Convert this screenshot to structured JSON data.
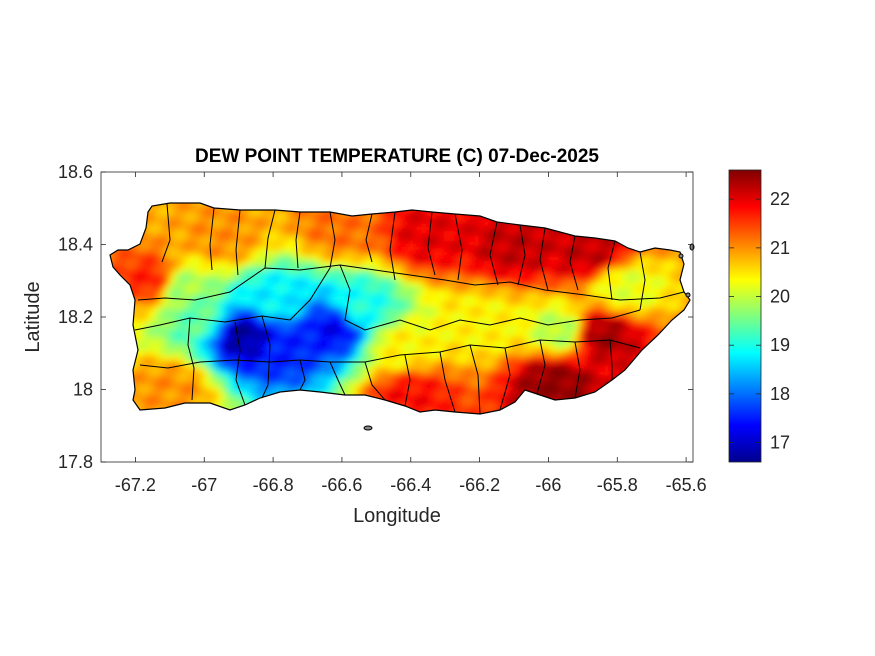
{
  "chart_data": {
    "type": "heatmap",
    "title": "DEW POINT TEMPERATURE (C) 07-Dec-2025",
    "xlabel": "Longitude",
    "ylabel": "Latitude",
    "xlim": [
      -67.3,
      -65.58
    ],
    "ylim": [
      17.8,
      18.6
    ],
    "x_ticks": [
      -67.2,
      -67,
      -66.8,
      -66.6,
      -66.4,
      -66.2,
      -66,
      -65.8,
      -65.6
    ],
    "y_ticks": [
      17.8,
      18,
      18.2,
      18.4,
      18.6
    ],
    "x_tick_labels": [
      "-67.2",
      "-67",
      "-66.8",
      "-66.6",
      "-66.4",
      "-66.2",
      "-66",
      "-65.8",
      "-65.6"
    ],
    "y_tick_labels": [
      "17.8",
      "18",
      "18.2",
      "18.4",
      "18.6"
    ],
    "colorbar": {
      "colormap": "jet",
      "range": [
        16.6,
        22.6
      ],
      "ticks": [
        17,
        18,
        19,
        20,
        21,
        22
      ],
      "tick_labels": [
        "17",
        "18",
        "19",
        "20",
        "21",
        "22"
      ]
    },
    "field_centers": [
      {
        "lon": -66.88,
        "lat": 18.15,
        "value": 16.8
      },
      {
        "lon": -66.62,
        "lat": 18.17,
        "value": 17.3
      },
      {
        "lon": -66.77,
        "lat": 18.12,
        "value": 17.5
      },
      {
        "lon": -66.8,
        "lat": 18.24,
        "value": 18.8
      },
      {
        "lon": -66.55,
        "lat": 18.22,
        "value": 19.0
      },
      {
        "lon": -67.02,
        "lat": 18.2,
        "value": 19.4
      },
      {
        "lon": -67.07,
        "lat": 18.28,
        "value": 19.8
      },
      {
        "lon": -66.43,
        "lat": 18.12,
        "value": 20.4
      },
      {
        "lon": -66.18,
        "lat": 18.18,
        "value": 20.4
      },
      {
        "lon": -65.96,
        "lat": 18.16,
        "value": 19.9
      },
      {
        "lon": -65.78,
        "lat": 18.28,
        "value": 20.2
      },
      {
        "lon": -66.35,
        "lat": 18.43,
        "value": 22.0
      },
      {
        "lon": -66.1,
        "lat": 18.4,
        "value": 22.2
      },
      {
        "lon": -65.88,
        "lat": 18.38,
        "value": 22.2
      },
      {
        "lon": -65.85,
        "lat": 18.15,
        "value": 22.4
      },
      {
        "lon": -65.98,
        "lat": 18.02,
        "value": 22.5
      },
      {
        "lon": -66.4,
        "lat": 17.98,
        "value": 21.8
      },
      {
        "lon": -67.15,
        "lat": 18.3,
        "value": 21.7
      },
      {
        "lon": -67.1,
        "lat": 18.0,
        "value": 21.0
      },
      {
        "lon": -66.95,
        "lat": 18.42,
        "value": 21.0
      },
      {
        "lon": -66.6,
        "lat": 18.45,
        "value": 21.2
      }
    ],
    "field_default": 21.0,
    "grid": false,
    "colorbar_position": "right"
  }
}
